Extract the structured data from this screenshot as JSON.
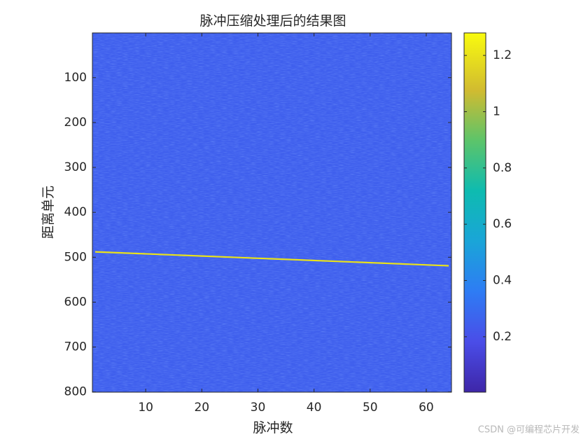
{
  "chart_data": {
    "type": "heatmap",
    "title": "脉冲压缩处理后的结果图",
    "xlabel": "脉冲数",
    "ylabel": "距离单元",
    "xlim": [
      0.5,
      64.5
    ],
    "xticks": [
      10,
      20,
      30,
      40,
      50,
      60
    ],
    "ylim": [
      0.5,
      800.5
    ],
    "yticks": [
      100,
      200,
      300,
      400,
      500,
      600,
      700,
      800
    ],
    "y_reversed": true,
    "clim": [
      0.003,
      1.28
    ],
    "cticks": [
      0.2,
      0.4,
      0.6,
      0.8,
      1,
      1.2
    ],
    "colormap": "parula",
    "background_level": 0.25,
    "track": {
      "x": [
        1,
        64
      ],
      "y": [
        488,
        519
      ],
      "value": 1.2
    },
    "watermark": "CSDN @可编程芯片开发"
  }
}
